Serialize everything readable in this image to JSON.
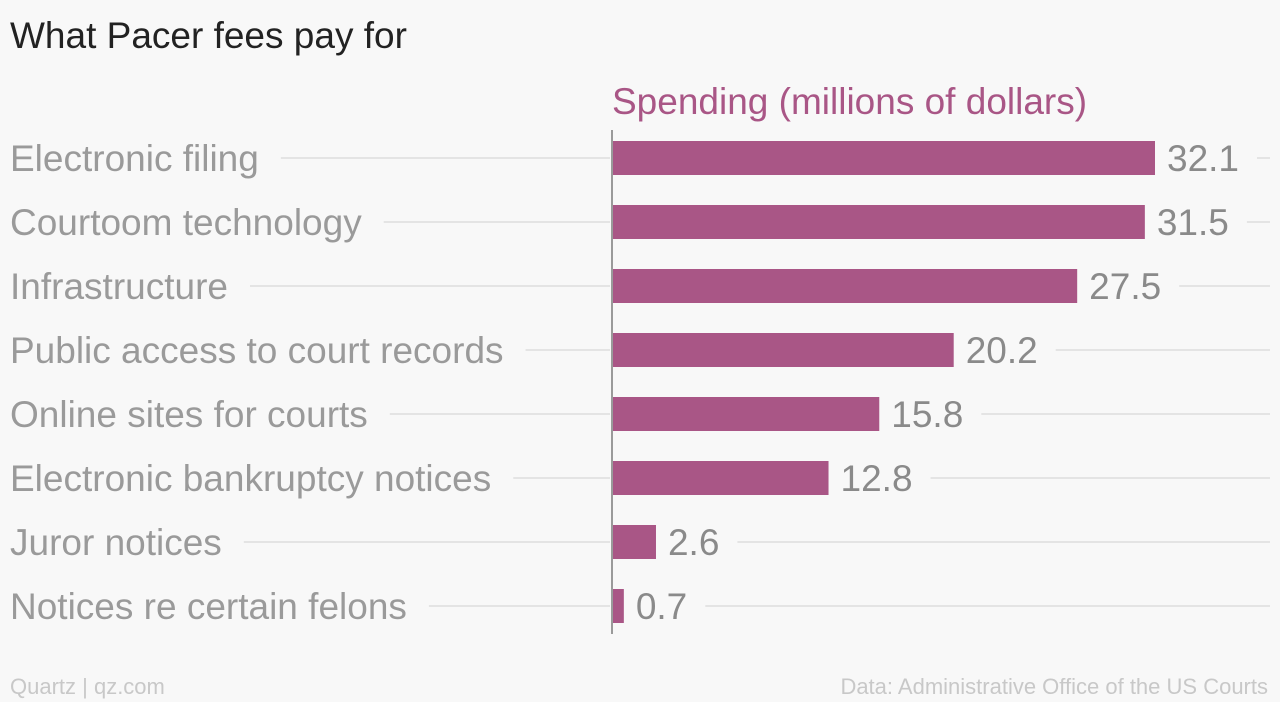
{
  "title": "What Pacer fees pay for",
  "footer": {
    "credit": "Quartz | qz.com",
    "source": "Data: Administrative Office of the US Courts"
  },
  "colors": {
    "bar": "#a95686",
    "series_label": "#a95686",
    "category_label": "#9a9a9a",
    "value_label": "#8a8a8a",
    "gridline": "#e4e4e4",
    "axis": "#9a9a9a"
  },
  "chart_data": {
    "type": "bar",
    "orientation": "horizontal",
    "title": "What Pacer fees pay for",
    "series": [
      {
        "name": "Spending (millions of dollars)",
        "values": [
          32.1,
          31.5,
          27.5,
          20.2,
          15.8,
          12.8,
          2.6,
          0.7
        ]
      }
    ],
    "categories": [
      "Electronic filing",
      "Courtoom technology",
      "Infrastructure",
      "Public access to court records",
      "Online sites for courts",
      "Electronic bankruptcy notices",
      "Juror notices",
      "Notices re certain felons"
    ],
    "value_labels": [
      "32.1",
      "31.5",
      "27.5",
      "20.2",
      "15.8",
      "12.8",
      "2.6",
      "0.7"
    ],
    "xlim": [
      0,
      32.1
    ],
    "grid": true,
    "legend": "top"
  }
}
